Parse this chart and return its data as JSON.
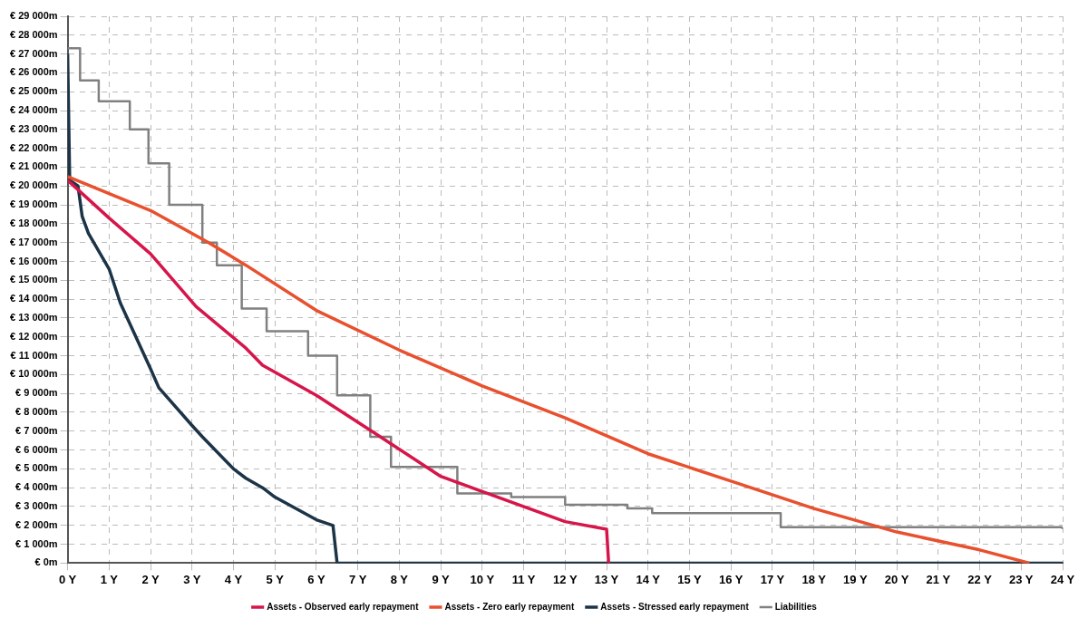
{
  "chart_data": {
    "type": "line",
    "xlim": [
      0,
      24
    ],
    "xticks": [
      {
        "value": 0,
        "label": "0 Y"
      },
      {
        "value": 1,
        "label": "1 Y"
      },
      {
        "value": 2,
        "label": "2 Y"
      },
      {
        "value": 3,
        "label": "3 Y"
      },
      {
        "value": 4,
        "label": "4 Y"
      },
      {
        "value": 5,
        "label": "5 Y"
      },
      {
        "value": 6,
        "label": "6 Y"
      },
      {
        "value": 7,
        "label": "7 Y"
      },
      {
        "value": 8,
        "label": "8 Y"
      },
      {
        "value": 9,
        "label": "9 Y"
      },
      {
        "value": 10,
        "label": "10 Y"
      },
      {
        "value": 11,
        "label": "11 Y"
      },
      {
        "value": 12,
        "label": "12 Y"
      },
      {
        "value": 13,
        "label": "13 Y"
      },
      {
        "value": 14,
        "label": "14 Y"
      },
      {
        "value": 15,
        "label": "15 Y"
      },
      {
        "value": 16,
        "label": "16 Y"
      },
      {
        "value": 17,
        "label": "17 Y"
      },
      {
        "value": 18,
        "label": "18 Y"
      },
      {
        "value": 19,
        "label": "19 Y"
      },
      {
        "value": 20,
        "label": "20 Y"
      },
      {
        "value": 21,
        "label": "21 Y"
      },
      {
        "value": 22,
        "label": "22 Y"
      },
      {
        "value": 23,
        "label": "23 Y"
      },
      {
        "value": 24,
        "label": "24 Y"
      }
    ],
    "ylim": [
      0,
      29000
    ],
    "yticks": [
      {
        "value": 0,
        "label": "€ 0m"
      },
      {
        "value": 1000,
        "label": "€ 1 000m"
      },
      {
        "value": 2000,
        "label": "€ 2 000m"
      },
      {
        "value": 3000,
        "label": "€ 3 000m"
      },
      {
        "value": 4000,
        "label": "€ 4 000m"
      },
      {
        "value": 5000,
        "label": "€ 5 000m"
      },
      {
        "value": 6000,
        "label": "€ 6 000m"
      },
      {
        "value": 7000,
        "label": "€ 7 000m"
      },
      {
        "value": 8000,
        "label": "€ 8 000m"
      },
      {
        "value": 9000,
        "label": "€ 9 000m"
      },
      {
        "value": 10000,
        "label": "€ 10 000m"
      },
      {
        "value": 11000,
        "label": "€ 11 000m"
      },
      {
        "value": 12000,
        "label": "€ 12 000m"
      },
      {
        "value": 13000,
        "label": "€ 13 000m"
      },
      {
        "value": 14000,
        "label": "€ 14 000m"
      },
      {
        "value": 15000,
        "label": "€ 15 000m"
      },
      {
        "value": 16000,
        "label": "€ 16 000m"
      },
      {
        "value": 17000,
        "label": "€ 17 000m"
      },
      {
        "value": 18000,
        "label": "€ 18 000m"
      },
      {
        "value": 19000,
        "label": "€ 19 000m"
      },
      {
        "value": 20000,
        "label": "€ 20 000m"
      },
      {
        "value": 21000,
        "label": "€ 21 000m"
      },
      {
        "value": 22000,
        "label": "€ 22 000m"
      },
      {
        "value": 23000,
        "label": "€ 23 000m"
      },
      {
        "value": 24000,
        "label": "€ 24 000m"
      },
      {
        "value": 25000,
        "label": "€ 25 000m"
      },
      {
        "value": 26000,
        "label": "€ 26 000m"
      },
      {
        "value": 27000,
        "label": "€ 27 000m"
      },
      {
        "value": 28000,
        "label": "€ 28 000m"
      },
      {
        "value": 29000,
        "label": "€ 29 000m"
      }
    ],
    "grid": true,
    "legend": "bottom",
    "marker": "none",
    "line_style": "solid",
    "series": [
      {
        "name": "Assets - Observed early repayment",
        "color": "#d6164a",
        "type": "line",
        "x": [
          0,
          0.4,
          1,
          2,
          3.1,
          4.3,
          4.7,
          6,
          7.4,
          9,
          10,
          12,
          13,
          13.05
        ],
        "values": [
          20300,
          19500,
          18300,
          16400,
          13600,
          11400,
          10500,
          8900,
          6900,
          4600,
          3800,
          2200,
          1800,
          0
        ]
      },
      {
        "name": "Assets - Zero early repayment",
        "color": "#e8502e",
        "type": "line",
        "x": [
          0,
          2,
          3.4,
          4.3,
          6,
          8,
          10,
          12,
          14,
          16,
          18,
          20,
          22,
          23.2
        ],
        "values": [
          20500,
          18700,
          17000,
          15800,
          13400,
          11300,
          9400,
          7700,
          5800,
          4350,
          2900,
          1650,
          700,
          0
        ]
      },
      {
        "name": "Assets - Stressed early repayment",
        "color": "#1c3447",
        "type": "line",
        "x": [
          0,
          0.05,
          0.25,
          0.35,
          0.5,
          1,
          1.27,
          2,
          2.2,
          3,
          3.25,
          4,
          4.3,
          4.7,
          5,
          6,
          6.4,
          6.5,
          24
        ],
        "values": [
          27000,
          20300,
          20000,
          18400,
          17500,
          15600,
          13800,
          10300,
          9300,
          7300,
          6700,
          5000,
          4500,
          4000,
          3500,
          2300,
          2000,
          0,
          0
        ]
      },
      {
        "name": "Liabilities",
        "color": "#808080",
        "type": "step",
        "x": [
          0,
          0.3,
          0.75,
          1.5,
          1.95,
          2.45,
          3.25,
          3.6,
          4.2,
          4.8,
          5.8,
          6.5,
          7.3,
          7.8,
          9.4,
          10.7,
          12,
          13.5,
          14.1,
          17.2,
          24
        ],
        "values": [
          27300,
          25600,
          24500,
          23000,
          21200,
          19000,
          17000,
          15800,
          13500,
          12300,
          11000,
          8900,
          6700,
          5100,
          3700,
          3500,
          3100,
          2900,
          2650,
          1900,
          1800
        ]
      }
    ]
  }
}
